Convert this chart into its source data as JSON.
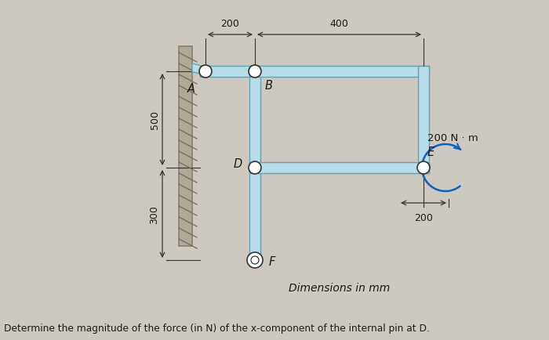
{
  "bg_color": "#cdc8c0",
  "struct_fill": "#b8dce8",
  "struct_edge": "#6a9faf",
  "wall_fill": "#b0a898",
  "wall_edge": "#888070",
  "hatch_color": "#7a6a58",
  "dim_color": "#333333",
  "text_color": "#1a1a1a",
  "pin_fill": "white",
  "pin_edge": "#333333",
  "moment_color": "#1060c0",
  "footer_text": "Determine the magnitude of the force (in N) of the x-component of the internal pin at D.",
  "label_A": "A",
  "label_B": "B",
  "label_D": "D",
  "label_E": "E",
  "label_F": "F",
  "dim_200_top": "200",
  "dim_400": "400",
  "dim_500": "500",
  "dim_300": "300",
  "dim_200_right": "200",
  "moment_label": "200 N · m",
  "dim_text": "Dimensions in mm"
}
